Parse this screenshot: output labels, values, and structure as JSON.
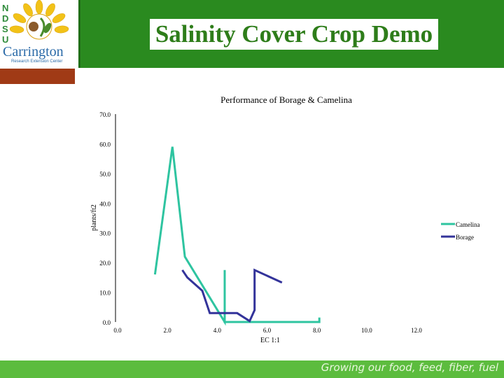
{
  "header": {
    "title": "Salinity Cover Crop Demo",
    "logo_text_main": "Carrington",
    "logo_text_sub": "Research Extension Center",
    "logo_letters": [
      "N",
      "D",
      "S",
      "U"
    ]
  },
  "footer": {
    "text": "Growing our food, feed, fiber, fuel"
  },
  "colors": {
    "header_green": "#2a8a1f",
    "title_green": "#2e7d1a",
    "brown_bar": "#a03a16",
    "footer_green": "#5cbc3e",
    "camelina": "#2ec4a0",
    "borage": "#33339a"
  },
  "chart_data": {
    "type": "line",
    "title": "Performance of Borage & Camelina",
    "xlabel": "EC 1:1",
    "ylabel": "plants/ft2",
    "xlim": [
      0,
      12
    ],
    "ylim": [
      0,
      70
    ],
    "x_ticks": [
      "0.0",
      "2.0",
      "4.0",
      "6.0",
      "8.0",
      "10.0",
      "12.0"
    ],
    "y_ticks": [
      "0.0",
      "10.0",
      "20.0",
      "30.0",
      "40.0",
      "50.0",
      "60.0",
      "70.0"
    ],
    "legend_position": "right",
    "series": [
      {
        "name": "Camelina",
        "color": "#2ec4a0",
        "points": [
          [
            1.5,
            16
          ],
          [
            2.2,
            59
          ],
          [
            2.7,
            22
          ],
          [
            4.3,
            0
          ],
          [
            4.3,
            17.5
          ],
          [
            4.3,
            0
          ],
          [
            8.1,
            0
          ],
          [
            8.1,
            1.5
          ]
        ]
      },
      {
        "name": "Borage",
        "color": "#33339a",
        "points": [
          [
            2.6,
            17.5
          ],
          [
            2.8,
            15
          ],
          [
            3.4,
            10.5
          ],
          [
            3.7,
            3
          ],
          [
            4.8,
            3
          ],
          [
            5.3,
            0.3
          ],
          [
            5.5,
            4
          ],
          [
            5.5,
            17.5
          ],
          [
            6.6,
            13.3
          ]
        ]
      }
    ]
  }
}
